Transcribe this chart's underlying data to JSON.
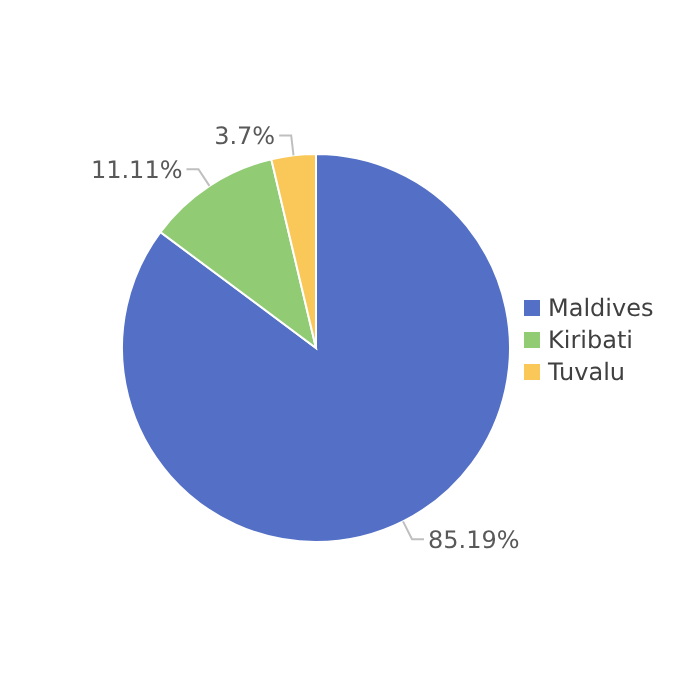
{
  "chart_data": {
    "type": "pie",
    "categories": [
      "Maldives",
      "Kiribati",
      "Tuvalu"
    ],
    "values": [
      85.19,
      11.11,
      3.7
    ],
    "colors": [
      "#5470c6",
      "#91cc75",
      "#fac858"
    ],
    "value_labels": [
      "85.19%",
      "11.11%",
      "3.7%"
    ],
    "legend": "right"
  }
}
